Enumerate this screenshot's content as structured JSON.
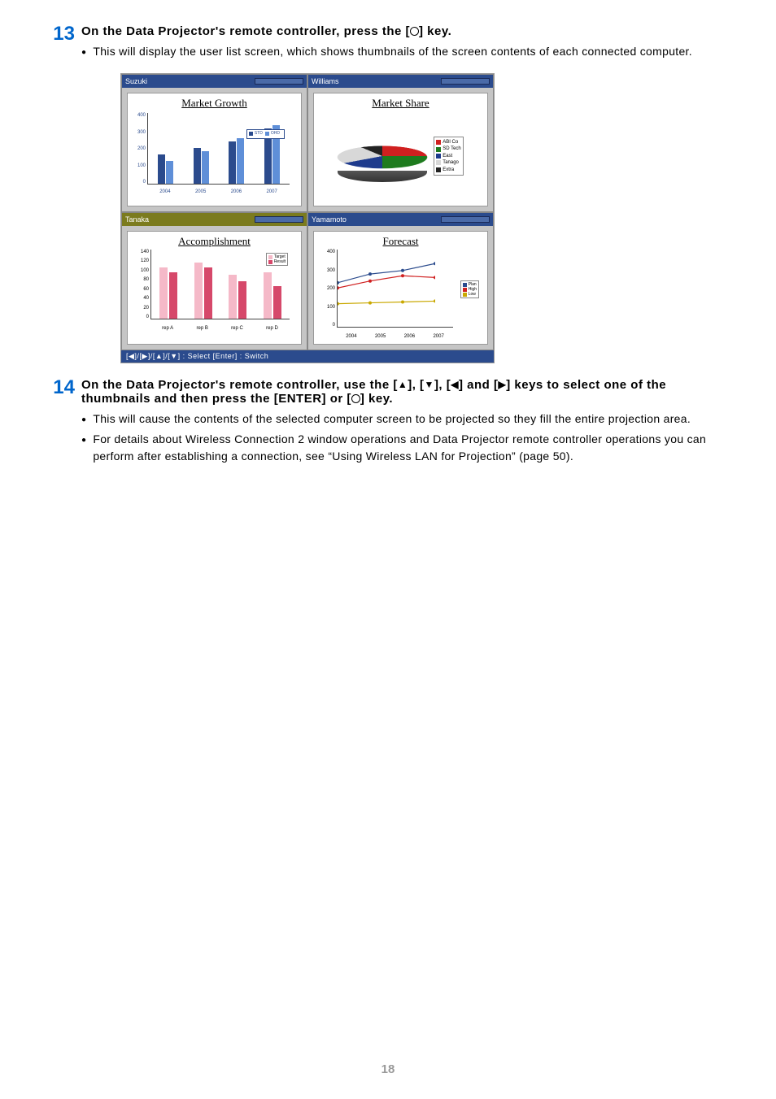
{
  "steps": {
    "step13": {
      "number": "13",
      "title_parts": [
        "On the Data Projector's remote controller, press the [",
        "] key."
      ],
      "bullets": [
        "This will display the user list screen, which shows thumbnails of the screen contents of each connected computer."
      ]
    },
    "step14": {
      "number": "14",
      "title_prefix": "On the Data Projector's remote controller, use the [",
      "title_mid1": "], [",
      "title_mid2": "], [",
      "title_mid3": "] and [",
      "title_mid4": "] keys to select one of the thumbnails and then press the [ENTER] or [",
      "title_suffix": "] key.",
      "bullets": [
        "This will cause the contents of the selected computer screen to be projected so they fill the entire projection area.",
        "For details about Wireless Connection 2 window operations and Data Projector remote controller operations you can perform after establishing a connection, see “Using Wireless LAN for Projection” (page 50)."
      ]
    }
  },
  "thumbnails": {
    "status_bar": "[◀]/[▶]/[▲]/[▼] : Select   [Enter] : Switch",
    "cells": [
      {
        "user": "Suzuki",
        "header_color": "blue",
        "chart": {
          "type": "bar",
          "title": "Market Growth",
          "legend": [
            {
              "label": "STD",
              "color": "#2b4b8d"
            },
            {
              "label": "OHD",
              "color": "#5f8fd8"
            }
          ],
          "ylim": [
            0,
            400
          ],
          "yticks": [
            400,
            300,
            200,
            100,
            0
          ],
          "categories": [
            "2004",
            "2005",
            "2006",
            "2007"
          ],
          "series": [
            {
              "color": "#2b4b8d",
              "values": [
                180,
                220,
                260,
                340
              ]
            },
            {
              "color": "#5f8fd8",
              "values": [
                140,
                200,
                280,
                360
              ]
            }
          ]
        }
      },
      {
        "user": "Williams",
        "header_color": "blue",
        "chart": {
          "type": "pie",
          "title": "Market Share",
          "slices": [
            {
              "label": "ABI Co",
              "color": "#d02020",
              "value": 25
            },
            {
              "label": "SD Tech",
              "color": "#1e7b1e",
              "value": 25
            },
            {
              "label": "East",
              "color": "#1e3b8d",
              "value": 20
            },
            {
              "label": "Tanago",
              "color": "#d8d8d8",
              "value": 15
            },
            {
              "label": "Extra",
              "color": "#222222",
              "value": 15
            }
          ]
        }
      },
      {
        "user": "Tanaka",
        "header_color": "olive",
        "chart": {
          "type": "grouped-bar",
          "title": "Accomplishment",
          "yticks": [
            140,
            120,
            100,
            80,
            60,
            40,
            20,
            0
          ],
          "ylim": [
            0,
            140
          ],
          "categories": [
            "rep A",
            "rep B",
            "rep C",
            "rep D"
          ],
          "series": [
            {
              "label": "Target",
              "color": "#f5b9c8",
              "values": [
                110,
                120,
                95,
                100
              ]
            },
            {
              "label": "Result",
              "color": "#d6486a",
              "values": [
                100,
                110,
                80,
                70
              ]
            }
          ]
        }
      },
      {
        "user": "Yamamoto",
        "header_color": "blue",
        "chart": {
          "type": "line",
          "title": "Forecast",
          "yticks": [
            400,
            300,
            200,
            100,
            0
          ],
          "ylim": [
            0,
            400
          ],
          "categories": [
            "2004",
            "2005",
            "2006",
            "2007"
          ],
          "series": [
            {
              "label": "Plan",
              "color": "#2b4b8d",
              "values": [
                210,
                260,
                280,
                320
              ]
            },
            {
              "label": "High",
              "color": "#d02020",
              "values": [
                180,
                220,
                250,
                240
              ]
            },
            {
              "label": "Low",
              "color": "#c9a800",
              "values": [
                90,
                95,
                100,
                105
              ]
            }
          ]
        }
      }
    ]
  },
  "page_number": "18",
  "colors": {
    "step_number": "#0066cc",
    "panel_bg": "#c5c5c5"
  }
}
